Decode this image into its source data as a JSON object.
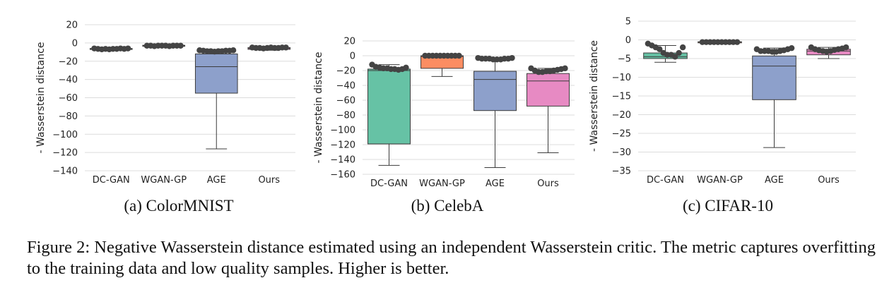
{
  "figure": {
    "caption": "Figure 2: Negative Wasserstein distance estimated using an independent Wasserstein critic. The metric captures overfitting to the training data and low quality samples. Higher is better."
  },
  "chart_data": [
    {
      "type": "box",
      "title": "(a) ColorMNIST",
      "xlabel": "",
      "ylabel": "- Wasserstein distance",
      "ylim": [
        -140,
        20
      ],
      "yticks": [
        "20",
        "0",
        "−20",
        "−40",
        "−60",
        "−80",
        "−100",
        "−120",
        "−140"
      ],
      "ytick_values": [
        20,
        0,
        -20,
        -40,
        -60,
        -80,
        -100,
        -120,
        -140
      ],
      "grid": true,
      "categories": [
        "DC-GAN",
        "WGAN-GP",
        "AGE",
        "Ours"
      ],
      "boxes": [
        {
          "name": "DC-GAN",
          "color": "#66c2a5",
          "q1": -7,
          "median": -6.5,
          "q3": -6,
          "whislo": -7,
          "whishi": -6,
          "points": [
            -6,
            -6.5,
            -7,
            -6.5,
            -7,
            -6.5,
            -6.5,
            -6,
            -6.5,
            -6
          ]
        },
        {
          "name": "WGAN-GP",
          "color": "#fc8d62",
          "q1": -3.5,
          "median": -3,
          "q3": -2.5,
          "whislo": -3.5,
          "whishi": -2.5,
          "points": [
            -3,
            -3,
            -3.5,
            -3,
            -3,
            -3,
            -3.5,
            -3,
            -3,
            -3
          ]
        },
        {
          "name": "AGE",
          "color": "#8da0cb",
          "q1": -55,
          "median": -26,
          "q3": -12,
          "whislo": -116,
          "whishi": -8,
          "points": [
            -8,
            -8.5,
            -9,
            -9,
            -9.5,
            -9,
            -9,
            -8.5,
            -8.5,
            -8
          ]
        },
        {
          "name": "Ours",
          "color": "#e78ac3",
          "q1": -7,
          "median": -6,
          "q3": -5,
          "whislo": -8,
          "whishi": -5,
          "points": [
            -5,
            -5.5,
            -5.5,
            -6,
            -5.5,
            -5,
            -5.5,
            -5.5,
            -5,
            -5
          ]
        }
      ]
    },
    {
      "type": "box",
      "title": "(b) CelebA",
      "xlabel": "",
      "ylabel": "- Wasserstein distance",
      "ylim": [
        -160,
        20
      ],
      "yticks": [
        "20",
        "0",
        "−20",
        "−40",
        "−60",
        "−80",
        "−100",
        "−120",
        "−140",
        "−160"
      ],
      "ytick_values": [
        20,
        0,
        -20,
        -40,
        -60,
        -80,
        -100,
        -120,
        -140,
        -160
      ],
      "grid": true,
      "categories": [
        "DC-GAN",
        "WGAN-GP",
        "AGE",
        "Ours"
      ],
      "boxes": [
        {
          "name": "DC-GAN",
          "color": "#66c2a5",
          "q1": -119,
          "median": -20,
          "q3": -18,
          "whislo": -148,
          "whishi": -12,
          "points": [
            -12,
            -15,
            -16,
            -17,
            -17,
            -18,
            -18,
            -19,
            -18,
            -16
          ]
        },
        {
          "name": "WGAN-GP",
          "color": "#fc8d62",
          "q1": -17,
          "median": -1,
          "q3": 0,
          "whislo": -28,
          "whishi": 0,
          "points": [
            0,
            0,
            0,
            0,
            0,
            0,
            0,
            0,
            0,
            0
          ]
        },
        {
          "name": "AGE",
          "color": "#8da0cb",
          "q1": -74,
          "median": -32,
          "q3": -21,
          "whislo": -151,
          "whishi": -3,
          "points": [
            -3,
            -4,
            -4,
            -4,
            -5,
            -5,
            -5,
            -4,
            -4,
            -3
          ]
        },
        {
          "name": "Ours",
          "color": "#e78ac3",
          "q1": -68,
          "median": -34,
          "q3": -24,
          "whislo": -131,
          "whishi": -17,
          "points": [
            -17,
            -20,
            -22,
            -22,
            -21,
            -21,
            -20,
            -19,
            -18,
            -17
          ]
        }
      ]
    },
    {
      "type": "box",
      "title": "(c) CIFAR-10",
      "xlabel": "",
      "ylabel": "- Wasserstein distance",
      "ylim": [
        -35,
        5
      ],
      "yticks": [
        "5",
        "0",
        "−5",
        "−10",
        "−15",
        "−20",
        "−25",
        "−30",
        "−35"
      ],
      "ytick_values": [
        5,
        0,
        -5,
        -10,
        -15,
        -20,
        -25,
        -30,
        -35
      ],
      "grid": true,
      "categories": [
        "DC-GAN",
        "WGAN-GP",
        "AGE",
        "Ours"
      ],
      "boxes": [
        {
          "name": "DC-GAN",
          "color": "#66c2a5",
          "q1": -5,
          "median": -4.5,
          "q3": -3.5,
          "whislo": -6,
          "whishi": -1.5,
          "points": [
            -1,
            -1.5,
            -2,
            -2.5,
            -3.5,
            -4,
            -4,
            -4.5,
            -3.5,
            -2
          ]
        },
        {
          "name": "WGAN-GP",
          "color": "#fc8d62",
          "q1": -0.8,
          "median": -0.6,
          "q3": -0.5,
          "whislo": -0.8,
          "whishi": -0.5,
          "points": [
            -0.6,
            -0.6,
            -0.6,
            -0.6,
            -0.6,
            -0.6,
            -0.6,
            -0.6,
            -0.6,
            -0.6
          ]
        },
        {
          "name": "AGE",
          "color": "#8da0cb",
          "q1": -16,
          "median": -7,
          "q3": -4.3,
          "whislo": -28.8,
          "whishi": -2.2,
          "points": [
            -2.5,
            -3,
            -3,
            -3,
            -3.2,
            -3.2,
            -3,
            -2.8,
            -2.5,
            -2.2
          ]
        },
        {
          "name": "Ours",
          "color": "#e78ac3",
          "q1": -4,
          "median": -3,
          "q3": -2.5,
          "whislo": -5,
          "whishi": -2,
          "points": [
            -2,
            -2.5,
            -2.8,
            -3,
            -3.2,
            -3,
            -2.7,
            -2.5,
            -2.3,
            -2
          ]
        }
      ]
    }
  ]
}
